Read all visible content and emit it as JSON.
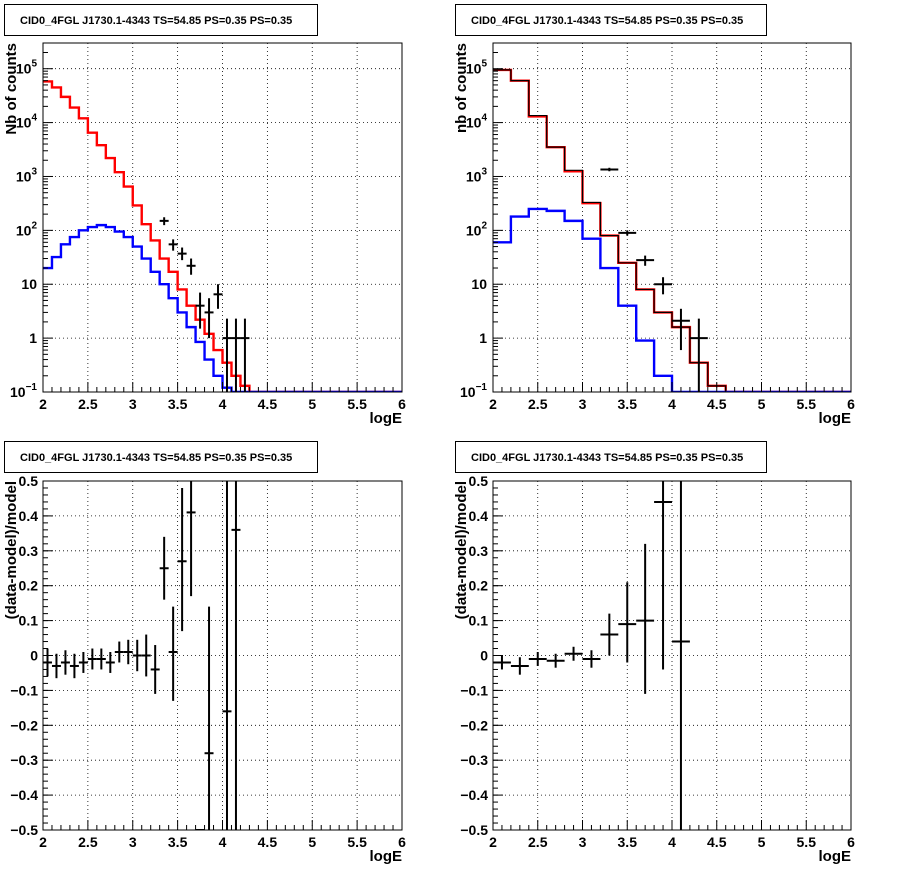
{
  "chart_data": [
    {
      "type": "histogram",
      "title": "CID0_4FGL J1730.1-4343 TS=54.85 PS=0.35 PS=0.35",
      "xlabel": "logE",
      "ylabel": "Nb of counts",
      "xlim": [
        2,
        6
      ],
      "ylim": [
        0.1,
        300000
      ],
      "yscale": "log",
      "grid": true,
      "x_ticks": [
        2,
        2.5,
        3,
        3.5,
        4,
        4.5,
        5,
        5.5,
        6
      ],
      "x_tick_labels": [
        "2",
        "2.5",
        "3",
        "3.5",
        "4",
        "4.5",
        "5",
        "5.5",
        "6"
      ],
      "y_ticks": [
        0.1,
        1,
        10,
        100,
        1000,
        10000,
        100000
      ],
      "y_tick_labels": [
        [
          "10",
          "−1"
        ],
        [
          "1",
          ""
        ],
        [
          "10",
          ""
        ],
        [
          "10",
          "2"
        ],
        [
          "10",
          "3"
        ],
        [
          "10",
          "4"
        ],
        [
          "10",
          "5"
        ]
      ],
      "series": [
        {
          "kind": "step",
          "color": "#ff0000",
          "edges": [
            2,
            2.1,
            2.2,
            2.3,
            2.4,
            2.5,
            2.6,
            2.7,
            2.8,
            2.9,
            3.0,
            3.1,
            3.2,
            3.3,
            3.4,
            3.5,
            3.6,
            3.7,
            3.8,
            3.9,
            4.0,
            4.1,
            4.2,
            4.3,
            4.4,
            4.5,
            4.6,
            5.0,
            6.0
          ],
          "values": [
            58000,
            45000,
            30000,
            19000,
            12000,
            6500,
            3800,
            2200,
            1200,
            650,
            290,
            130,
            65,
            30,
            17,
            8,
            4,
            2.2,
            1.2,
            0.6,
            0.35,
            0.2,
            0.13,
            0.1,
            0.1,
            0.1,
            0.1,
            0.1
          ]
        },
        {
          "kind": "step",
          "color": "#0000ff",
          "edges": [
            2,
            2.1,
            2.2,
            2.3,
            2.4,
            2.5,
            2.6,
            2.7,
            2.8,
            2.9,
            3.0,
            3.1,
            3.2,
            3.3,
            3.4,
            3.5,
            3.6,
            3.7,
            3.8,
            3.9,
            4.0,
            4.1,
            4.2,
            4.3,
            4.4,
            4.5,
            4.6,
            5.0,
            6.0
          ],
          "values": [
            20,
            32,
            55,
            75,
            100,
            115,
            125,
            115,
            95,
            75,
            50,
            30,
            17,
            10,
            5.5,
            3,
            1.6,
            0.85,
            0.4,
            0.2,
            0.12,
            0.1,
            0.1,
            0.1,
            0.1,
            0.1,
            0.1,
            0.1
          ]
        },
        {
          "kind": "points",
          "color": "#000000",
          "x": [
            3.35,
            3.45,
            3.55,
            3.65,
            3.75,
            3.85,
            3.95,
            4.05,
            4.15,
            4.25
          ],
          "y": [
            150,
            55,
            37,
            22,
            4,
            3,
            6.5,
            1,
            1,
            1
          ],
          "xerr": 0.05,
          "ylo": [
            125,
            42,
            28,
            15,
            1.5,
            1,
            3.5,
            0.1,
            0.1,
            0.1
          ],
          "yhi": [
            175,
            68,
            48,
            30,
            7,
            5.5,
            10,
            2.3,
            2.3,
            2.3
          ]
        }
      ]
    },
    {
      "type": "histogram",
      "title": "CID0_4FGL J1730.1-4343 TS=54.85 PS=0.35 PS=0.35",
      "xlabel": "logE",
      "ylabel": "nb of counts",
      "xlim": [
        2,
        6
      ],
      "ylim": [
        0.1,
        300000
      ],
      "yscale": "log",
      "grid": true,
      "x_ticks": [
        2,
        2.5,
        3,
        3.5,
        4,
        4.5,
        5,
        5.5,
        6
      ],
      "x_tick_labels": [
        "2",
        "2.5",
        "3",
        "3.5",
        "4",
        "4.5",
        "5",
        "5.5",
        "6"
      ],
      "y_ticks": [
        0.1,
        1,
        10,
        100,
        1000,
        10000,
        100000
      ],
      "y_tick_labels": [
        [
          "10",
          "−1"
        ],
        [
          "1",
          ""
        ],
        [
          "10",
          ""
        ],
        [
          "10",
          "2"
        ],
        [
          "10",
          "3"
        ],
        [
          "10",
          "4"
        ],
        [
          "10",
          "5"
        ]
      ],
      "series": [
        {
          "kind": "step",
          "color": "#ff0000",
          "edges": [
            2,
            2.2,
            2.4,
            2.6,
            2.8,
            3.0,
            3.2,
            3.4,
            3.6,
            3.8,
            4.0,
            4.2,
            4.4,
            4.6,
            4.8,
            5.0,
            6.0
          ],
          "values": [
            95000,
            60000,
            13000,
            3500,
            1250,
            320,
            80,
            25,
            8,
            3,
            1.6,
            0.35,
            0.13,
            0.1,
            0.1,
            0.1
          ]
        },
        {
          "kind": "step",
          "color": "#000000",
          "width": 1.2,
          "edges": [
            2,
            2.2,
            2.4,
            2.6,
            2.8,
            3.0,
            3.2,
            3.4,
            3.6,
            3.8,
            4.0,
            4.2,
            4.4,
            4.6,
            4.8,
            5.0,
            6.0
          ],
          "values": [
            95000,
            60000,
            13500,
            3500,
            1300,
            330,
            80,
            25,
            8,
            3,
            1.6,
            0.35,
            0.13,
            0.1,
            0.1,
            0.1
          ]
        },
        {
          "kind": "step",
          "color": "#0000ff",
          "edges": [
            2,
            2.2,
            2.4,
            2.6,
            2.8,
            3.0,
            3.2,
            3.4,
            3.6,
            3.8,
            4.0,
            4.2,
            4.4,
            4.6,
            4.8,
            5.0,
            6.0
          ],
          "values": [
            60,
            180,
            250,
            230,
            150,
            70,
            20,
            4,
            0.9,
            0.2,
            0.1,
            0.1,
            0.1,
            0.1,
            0.1,
            0.1
          ]
        },
        {
          "kind": "points",
          "color": "#000000",
          "x": [
            3.3,
            3.5,
            3.7,
            3.9,
            4.1,
            4.3
          ],
          "y": [
            1350,
            90,
            28,
            10,
            2.1,
            1
          ],
          "xerr": 0.1,
          "ylo": [
            1250,
            80,
            22,
            6.5,
            0.6,
            0.1
          ],
          "yhi": [
            1450,
            100,
            34,
            13.5,
            3.5,
            2.3
          ]
        }
      ]
    },
    {
      "type": "scatter",
      "title": "CID0_4FGL J1730.1-4343 TS=54.85 PS=0.35 PS=0.35",
      "xlabel": "logE",
      "ylabel": "(data-model)/model",
      "xlim": [
        2,
        6
      ],
      "ylim": [
        -0.5,
        0.5
      ],
      "grid": true,
      "x_ticks": [
        2,
        2.5,
        3,
        3.5,
        4,
        4.5,
        5,
        5.5,
        6
      ],
      "x_tick_labels": [
        "2",
        "2.5",
        "3",
        "3.5",
        "4",
        "4.5",
        "5",
        "5.5",
        "6"
      ],
      "y_ticks": [
        -0.5,
        -0.4,
        -0.3,
        -0.2,
        -0.1,
        0,
        0.1,
        0.2,
        0.3,
        0.4,
        0.5
      ],
      "y_tick_labels": [
        "−0.5",
        "−0.4",
        "−0.3",
        "−0.2",
        "−0.1",
        "0",
        "0.1",
        "0.2",
        "0.3",
        "0.4",
        "0.5"
      ],
      "series": [
        {
          "kind": "points",
          "color": "#000000",
          "xerr": 0.05,
          "x": [
            2.05,
            2.15,
            2.25,
            2.35,
            2.45,
            2.55,
            2.65,
            2.75,
            2.85,
            2.95,
            3.05,
            3.15,
            3.25,
            3.35,
            3.45,
            3.55,
            3.65,
            3.75,
            3.85,
            4.05,
            4.15
          ],
          "y": [
            -0.02,
            -0.03,
            -0.02,
            -0.03,
            -0.02,
            -0.01,
            -0.01,
            -0.02,
            0.01,
            0.01,
            0.0,
            0.0,
            -0.04,
            0.25,
            0.01,
            0.27,
            0.41,
            -0.5,
            -0.28,
            -0.16,
            0.36
          ],
          "ylo": [
            -0.06,
            -0.065,
            -0.055,
            -0.065,
            -0.05,
            -0.04,
            -0.04,
            -0.05,
            -0.02,
            -0.025,
            -0.045,
            -0.06,
            -0.11,
            0.16,
            -0.13,
            0.07,
            0.17,
            -0.5,
            -0.5,
            -0.5,
            -0.5
          ],
          "yhi": [
            0.02,
            0.005,
            0.015,
            0.005,
            0.01,
            0.02,
            0.02,
            0.01,
            0.04,
            0.045,
            0.045,
            0.06,
            0.03,
            0.34,
            0.14,
            0.48,
            0.5,
            -0.5,
            0.14,
            0.5,
            0.5
          ]
        }
      ]
    },
    {
      "type": "scatter",
      "title": "CID0_4FGL J1730.1-4343 TS=54.85 PS=0.35 PS=0.35",
      "xlabel": "logE",
      "ylabel": "(data-model)/model",
      "xlim": [
        2,
        6
      ],
      "ylim": [
        -0.5,
        0.5
      ],
      "grid": true,
      "x_ticks": [
        2,
        2.5,
        3,
        3.5,
        4,
        4.5,
        5,
        5.5,
        6
      ],
      "x_tick_labels": [
        "2",
        "2.5",
        "3",
        "3.5",
        "4",
        "4.5",
        "5",
        "5.5",
        "6"
      ],
      "y_ticks": [
        -0.5,
        -0.4,
        -0.3,
        -0.2,
        -0.1,
        0,
        0.1,
        0.2,
        0.3,
        0.4,
        0.5
      ],
      "y_tick_labels": [
        "−0.5",
        "−0.4",
        "−0.3",
        "−0.2",
        "−0.1",
        "0",
        "0.1",
        "0.2",
        "0.3",
        "0.4",
        "0.5"
      ],
      "series": [
        {
          "kind": "points",
          "color": "#000000",
          "xerr": 0.1,
          "x": [
            2.1,
            2.3,
            2.5,
            2.7,
            2.9,
            3.1,
            3.3,
            3.5,
            3.7,
            3.9,
            4.1
          ],
          "y": [
            -0.02,
            -0.03,
            -0.01,
            -0.015,
            0.005,
            -0.01,
            0.06,
            0.09,
            0.1,
            0.44,
            0.04
          ],
          "ylo": [
            -0.04,
            -0.055,
            -0.03,
            -0.035,
            -0.015,
            -0.035,
            0.0,
            -0.02,
            -0.11,
            -0.04,
            -0.5
          ],
          "yhi": [
            0.0,
            -0.005,
            0.01,
            0.005,
            0.025,
            0.015,
            0.12,
            0.21,
            0.32,
            0.5,
            0.5
          ]
        }
      ]
    }
  ]
}
